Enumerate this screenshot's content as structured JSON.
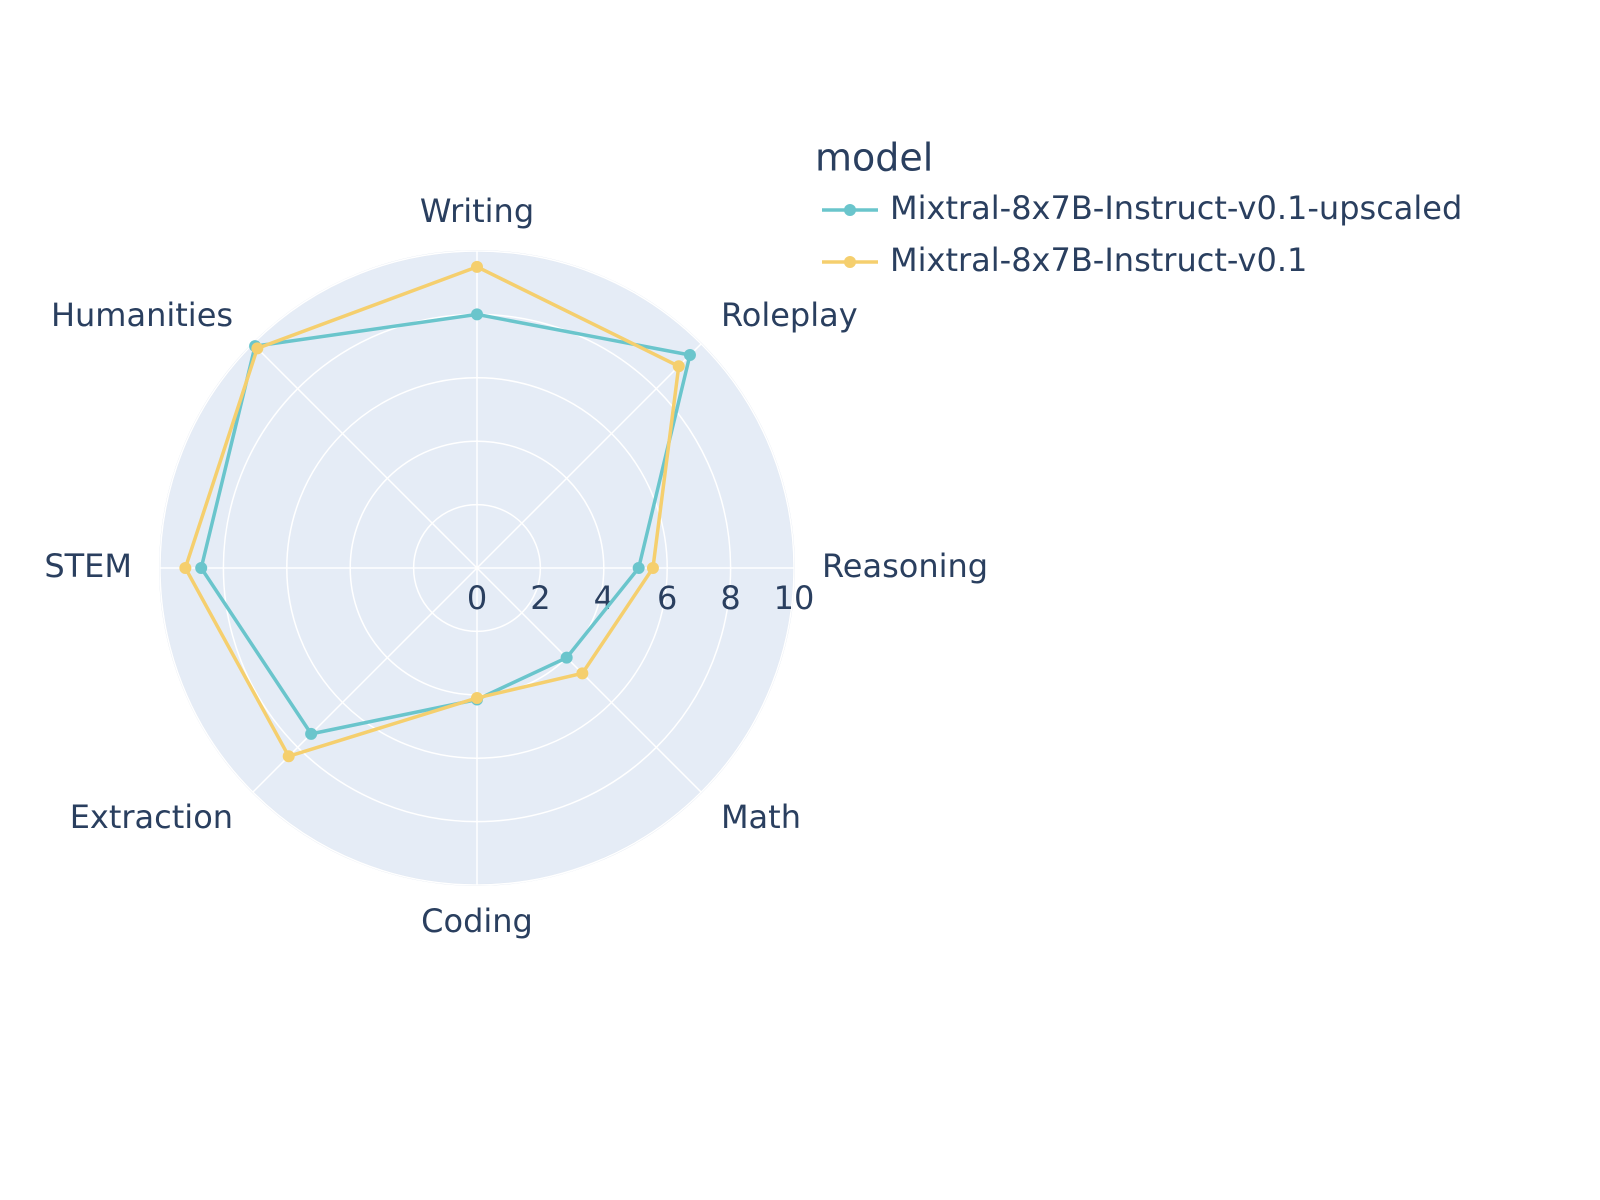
{
  "chart_data": {
    "type": "radar",
    "categories": [
      "Writing",
      "Roleplay",
      "Reasoning",
      "Math",
      "Coding",
      "Extraction",
      "STEM",
      "Humanities"
    ],
    "series": [
      {
        "name": "Mixtral-8x7B-Instruct-v0.1-upscaled",
        "color": "#6ac5cc",
        "values": [
          8.0,
          9.5,
          5.1,
          4.0,
          4.15,
          7.4,
          8.7,
          9.9
        ]
      },
      {
        "name": "Mixtral-8x7B-Instruct-v0.1",
        "color": "#f5cf6e",
        "values": [
          9.5,
          9.0,
          5.55,
          4.7,
          4.1,
          8.4,
          9.2,
          9.8
        ]
      }
    ],
    "rlim": [
      0,
      10
    ],
    "rticks": [
      0,
      2,
      4,
      6,
      8,
      10
    ],
    "legend_title": "model",
    "grid": true
  }
}
